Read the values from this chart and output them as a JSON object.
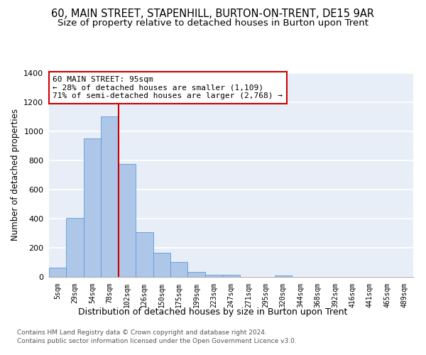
{
  "title1": "60, MAIN STREET, STAPENHILL, BURTON-ON-TRENT, DE15 9AR",
  "title2": "Size of property relative to detached houses in Burton upon Trent",
  "xlabel": "Distribution of detached houses by size in Burton upon Trent",
  "ylabel": "Number of detached properties",
  "footer1": "Contains HM Land Registry data © Crown copyright and database right 2024.",
  "footer2": "Contains public sector information licensed under the Open Government Licence v3.0.",
  "categories": [
    "5sqm",
    "29sqm",
    "54sqm",
    "78sqm",
    "102sqm",
    "126sqm",
    "150sqm",
    "175sqm",
    "199sqm",
    "223sqm",
    "247sqm",
    "271sqm",
    "295sqm",
    "320sqm",
    "344sqm",
    "368sqm",
    "392sqm",
    "416sqm",
    "441sqm",
    "465sqm",
    "489sqm"
  ],
  "values": [
    65,
    405,
    950,
    1100,
    775,
    305,
    165,
    100,
    35,
    15,
    15,
    0,
    0,
    10,
    0,
    0,
    0,
    0,
    0,
    0,
    0
  ],
  "bar_color": "#aec6e8",
  "bar_edge_color": "#5b9bd5",
  "bg_color": "#e8eef8",
  "grid_color": "#ffffff",
  "annotation_text": "60 MAIN STREET: 95sqm\n← 28% of detached houses are smaller (1,109)\n71% of semi-detached houses are larger (2,768) →",
  "ref_line_x": 4.0,
  "ylim": [
    0,
    1400
  ],
  "yticks": [
    0,
    200,
    400,
    600,
    800,
    1000,
    1200,
    1400
  ],
  "annotation_box_color": "#ffffff",
  "annotation_box_edge": "#cc0000",
  "ref_line_color": "#cc0000",
  "title1_fontsize": 10.5,
  "title2_fontsize": 9.5,
  "xlabel_fontsize": 9,
  "ylabel_fontsize": 8.5,
  "tick_fontsize": 7,
  "annotation_fontsize": 8,
  "footer_fontsize": 6.5
}
